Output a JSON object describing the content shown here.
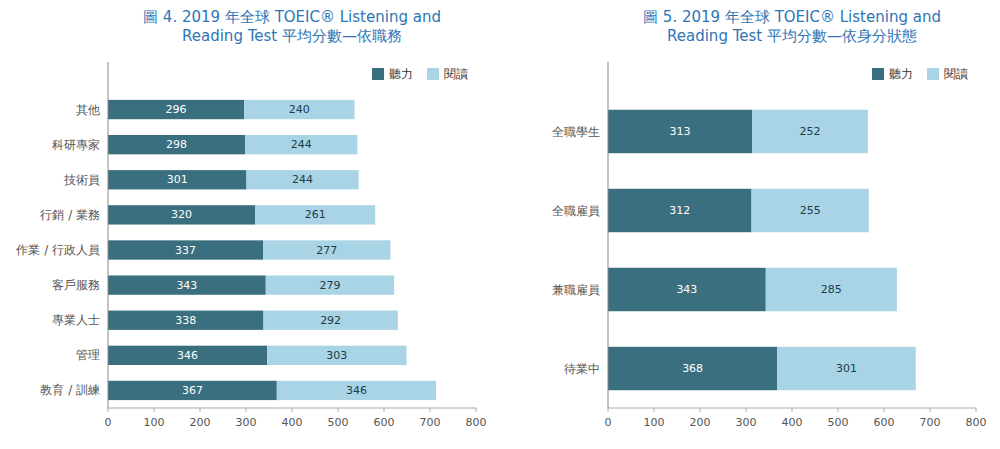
{
  "chart_data": [
    {
      "type": "bar",
      "orientation": "horizontal",
      "stacked": true,
      "title": "圖 4. 2019 年全球 TOEIC® Listening and\nReading Test 平均分數—依職務",
      "categories": [
        "其他",
        "科研專家",
        "技術員",
        "行銷 / 業務",
        "作業 / 行政人員",
        "客戶服務",
        "專業人士",
        "管理",
        "教育 / 訓練"
      ],
      "series": [
        {
          "name": "聽力",
          "color": "#3a6f7f",
          "values": [
            296,
            298,
            301,
            320,
            337,
            343,
            338,
            346,
            367
          ]
        },
        {
          "name": "閱讀",
          "color": "#a8d4e6",
          "values": [
            240,
            244,
            244,
            261,
            277,
            279,
            292,
            303,
            346
          ]
        }
      ],
      "xlim": [
        0,
        800
      ],
      "xticks": [
        0,
        100,
        200,
        300,
        400,
        500,
        600,
        700,
        800
      ],
      "grid": false,
      "legend": "upper right",
      "data_labels": true
    },
    {
      "type": "bar",
      "orientation": "horizontal",
      "stacked": true,
      "title": "圖 5. 2019 年全球 TOEIC® Listening and\nReading Test 平均分數—依身分狀態",
      "categories": [
        "全職學生",
        "全職雇員",
        "兼職雇員",
        "待業中"
      ],
      "series": [
        {
          "name": "聽力",
          "color": "#3a6f7f",
          "values": [
            313,
            312,
            343,
            368
          ]
        },
        {
          "name": "閱讀",
          "color": "#a8d4e6",
          "values": [
            252,
            255,
            285,
            301
          ]
        }
      ],
      "xlim": [
        0,
        800
      ],
      "xticks": [
        0,
        100,
        200,
        300,
        400,
        500,
        600,
        700,
        800
      ],
      "grid": false,
      "legend": "upper right",
      "data_labels": true
    }
  ]
}
